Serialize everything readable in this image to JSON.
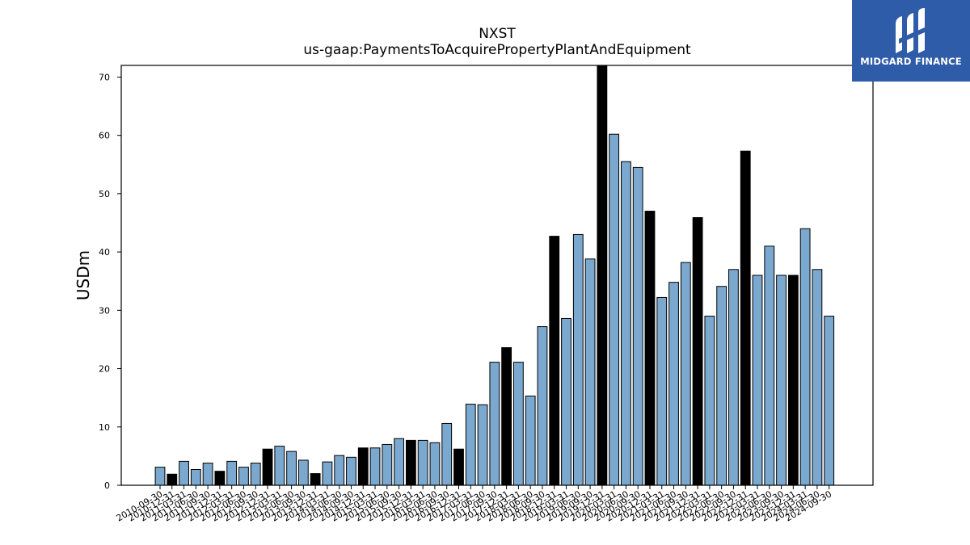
{
  "chart_data": {
    "type": "bar",
    "title": "NXST",
    "subtitle": "us-gaap:PaymentsToAcquirePropertyPlantAndEquipment",
    "xlabel": "",
    "ylabel": "USDm",
    "ylim": [
      0,
      72
    ],
    "yticks": [
      0,
      10,
      20,
      30,
      40,
      50,
      60,
      70
    ],
    "grid": false,
    "colors": {
      "quarter": "#7aa8cf",
      "year_end": "#000000",
      "edge": "#000000"
    },
    "categories": [
      "2010-09-30",
      "2010-12-31",
      "2011-03-31",
      "2011-06-30",
      "2011-09-30",
      "2011-12-31",
      "2012-03-31",
      "2012-06-30",
      "2012-09-30",
      "2012-12-31",
      "2013-03-31",
      "2013-06-30",
      "2013-09-30",
      "2013-12-31",
      "2014-03-31",
      "2014-06-30",
      "2014-09-30",
      "2014-12-31",
      "2015-03-31",
      "2015-06-30",
      "2015-09-30",
      "2015-12-31",
      "2016-03-31",
      "2016-06-30",
      "2016-09-30",
      "2016-12-31",
      "2017-03-31",
      "2017-06-30",
      "2017-09-30",
      "2017-12-31",
      "2018-03-31",
      "2018-06-30",
      "2018-09-30",
      "2018-12-31",
      "2019-03-31",
      "2019-06-30",
      "2019-09-30",
      "2019-12-31",
      "2020-03-31",
      "2020-06-30",
      "2020-09-30",
      "2020-12-31",
      "2021-03-31",
      "2021-06-30",
      "2021-09-30",
      "2021-12-31",
      "2022-03-31",
      "2022-06-30",
      "2022-09-30",
      "2022-12-31",
      "2023-03-31",
      "2023-06-30",
      "2023-09-30",
      "2023-12-31",
      "2024-03-31",
      "2024-06-30",
      "2024-09-30"
    ],
    "values": [
      3.1,
      1.9,
      4.1,
      2.7,
      3.8,
      2.4,
      4.1,
      3.1,
      3.8,
      6.2,
      6.7,
      5.8,
      4.3,
      2.0,
      4.0,
      5.1,
      4.8,
      6.4,
      6.4,
      7.0,
      8.0,
      7.7,
      7.7,
      7.3,
      10.6,
      6.2,
      13.9,
      13.8,
      21.1,
      23.6,
      21.1,
      15.3,
      27.2,
      42.7,
      28.6,
      43.0,
      38.8,
      72.0,
      60.2,
      55.5,
      54.5,
      47.0,
      32.2,
      34.8,
      38.2,
      45.9,
      29.0,
      34.1,
      37.0,
      57.3,
      36.0,
      41.0,
      36.0,
      36.0,
      44.0,
      37.0,
      29.0
    ],
    "year_end": [
      false,
      true,
      false,
      false,
      false,
      true,
      false,
      false,
      false,
      true,
      false,
      false,
      false,
      true,
      false,
      false,
      false,
      true,
      false,
      false,
      false,
      true,
      false,
      false,
      false,
      true,
      false,
      false,
      false,
      true,
      false,
      false,
      false,
      true,
      false,
      false,
      false,
      true,
      false,
      false,
      false,
      true,
      false,
      false,
      false,
      true,
      false,
      false,
      false,
      true,
      false,
      false,
      false,
      true,
      false,
      false,
      false
    ]
  },
  "logo": {
    "text": "MIDGARD FINANCE",
    "color": "#2f5ca8"
  }
}
